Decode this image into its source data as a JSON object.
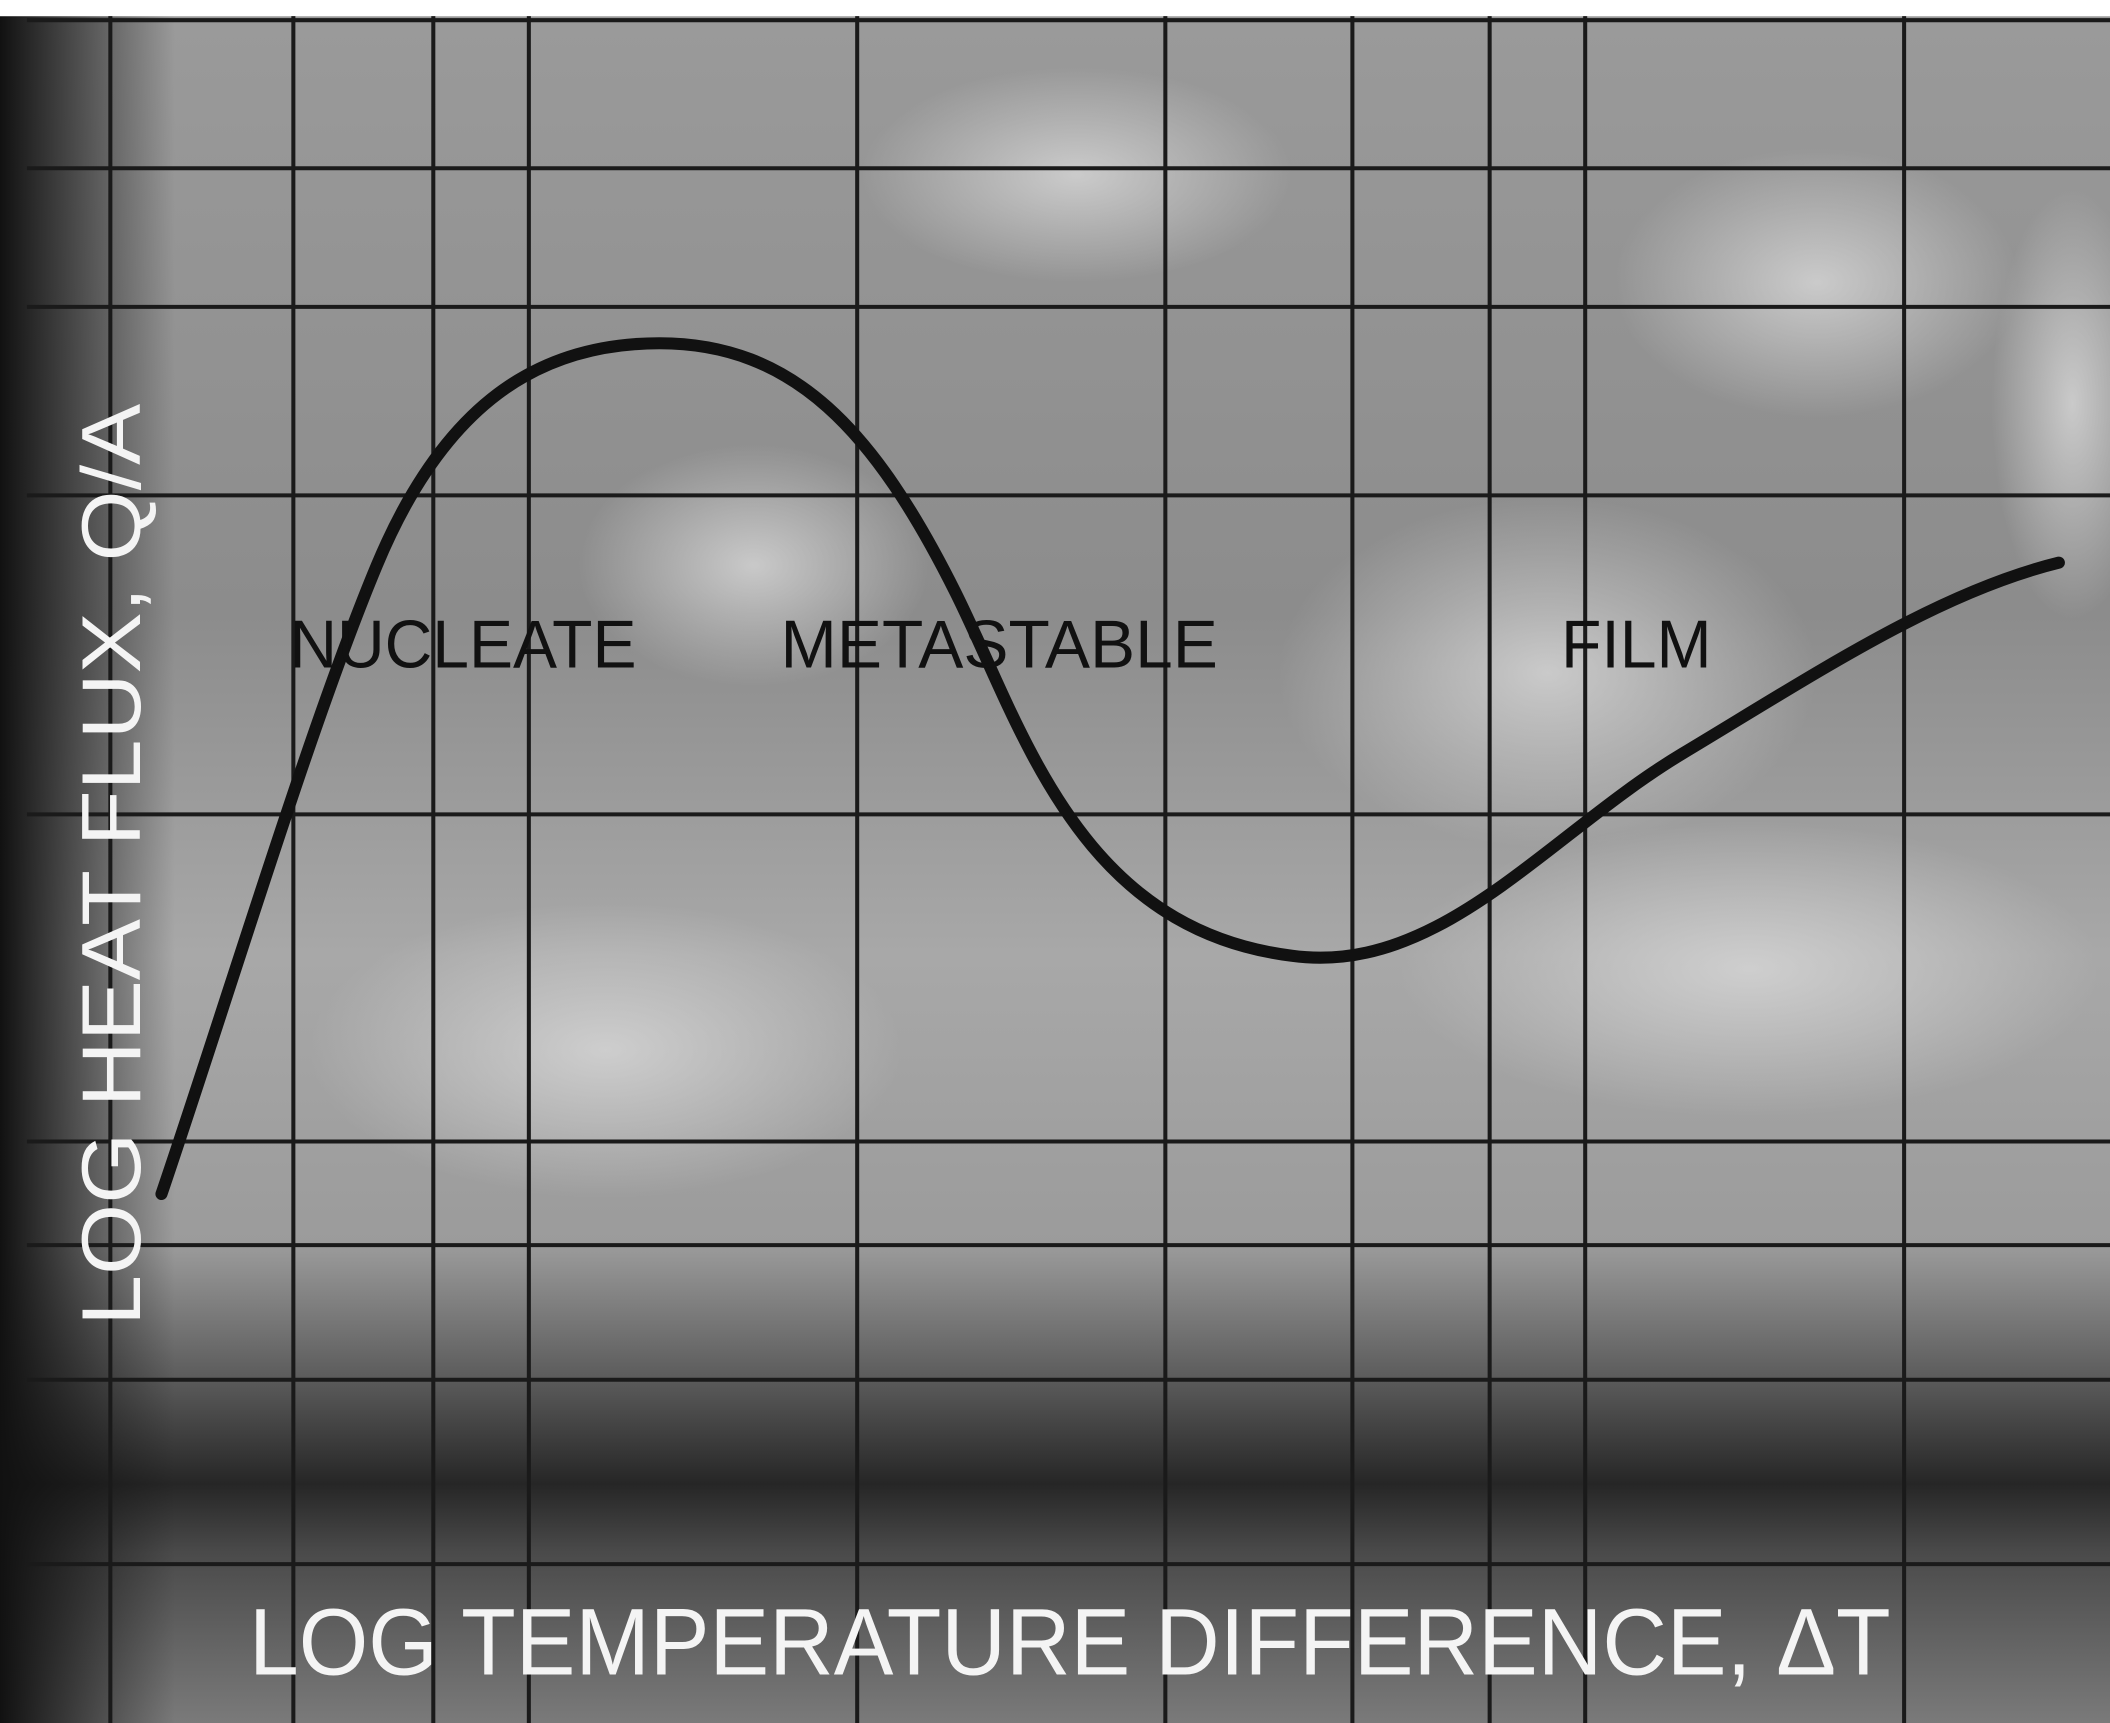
{
  "y_axis_label": "LOG HEAT FLUX, Q/A",
  "x_axis_label": "LOG TEMPERATURE DIFFERENCE, ΔT",
  "regions": [
    "NUCLEATE",
    "METASTABLE",
    "FILM"
  ]
}
